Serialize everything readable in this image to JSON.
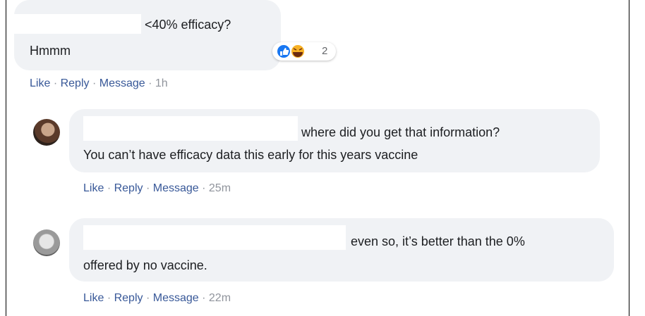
{
  "comments": [
    {
      "lines": [
        "<40% efficacy?",
        "Hmmm"
      ],
      "reactions": {
        "count": 2
      },
      "actions": [
        "Like",
        "Reply",
        "Message"
      ],
      "separator": "·",
      "time": "1h"
    },
    {
      "lines": [
        "where did you get that information?",
        "You can’t have efficacy data this early for this years vaccine"
      ],
      "actions": [
        "Like",
        "Reply",
        "Message"
      ],
      "separator": "·",
      "time": "25m"
    },
    {
      "lines": [
        "even so, it’s better than the 0%",
        "offered by no vaccine."
      ],
      "actions": [
        "Like",
        "Reply",
        "Message"
      ],
      "separator": "·",
      "time": "22m"
    }
  ]
}
